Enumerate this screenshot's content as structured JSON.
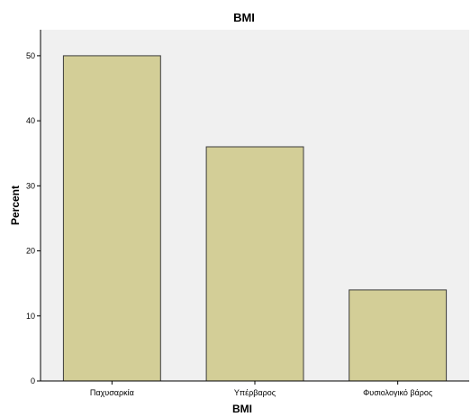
{
  "chart_data": {
    "type": "bar",
    "title": "BMI",
    "xlabel": "BMI",
    "ylabel": "Percent",
    "categories": [
      "Παχυσαρκία",
      "Υπέρβαρος",
      "Φυσιολογικό βάρος"
    ],
    "values": [
      50,
      36,
      14
    ],
    "ylim": [
      0,
      54
    ],
    "yticks": [
      0,
      10,
      20,
      30,
      40,
      50
    ],
    "grid": false,
    "legend": "none",
    "colors": {
      "plot_background": "#f0f0f0",
      "bar_fill": "#d3ce97",
      "bar_stroke": "#3c3c3c",
      "axis": "#000000"
    }
  }
}
